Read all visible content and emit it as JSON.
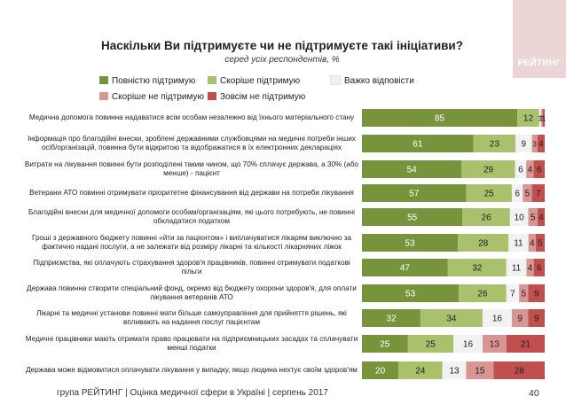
{
  "brand": {
    "logo_text": "РЕЙТИНГ"
  },
  "footer": {
    "text": "група РЕЙТИНГ  |  Оцінка медичної сфери в Україні  |  серпень 2017",
    "page": "40"
  },
  "chart_data": {
    "type": "bar",
    "orientation": "horizontal-stacked-100",
    "title": "Наскільки Ви підтримуєте чи не підтримуєте такі ініціативи?",
    "subtitle": "серед усіх респондентів, %",
    "series": [
      {
        "name": "Повністю підтримую",
        "color": "#77933c",
        "text_color": "#ffffff",
        "values": [
          85,
          61,
          54,
          57,
          55,
          53,
          47,
          53,
          32,
          25,
          20
        ]
      },
      {
        "name": "Скоріше підтримую",
        "color": "#a9c16d",
        "text_color": "#222222",
        "values": [
          12,
          23,
          29,
          25,
          26,
          28,
          32,
          26,
          34,
          25,
          24
        ]
      },
      {
        "name": "Важко відповісти",
        "color": "#f2f2f2",
        "text_color": "#222222",
        "values": [
          1,
          9,
          6,
          6,
          10,
          11,
          11,
          7,
          16,
          16,
          13
        ]
      },
      {
        "name": "Скоріше не підтримую",
        "color": "#d99594",
        "text_color": "#222222",
        "values": [
          1,
          3,
          4,
          5,
          5,
          4,
          4,
          5,
          9,
          13,
          15
        ]
      },
      {
        "name": "Зовсім не підтримую",
        "color": "#c0504d",
        "text_color": "#222222",
        "values": [
          1,
          4,
          6,
          7,
          4,
          5,
          6,
          9,
          9,
          21,
          28
        ]
      }
    ],
    "categories": [
      "Медична допомога повинна надаватися всім особам незалежно від їхнього матеріального стану",
      "Інформація про благодійні внески, зроблені державними службовцями на медичні потреби інших осіб/організацій, повинна бути відкритою та відображатися в їх електронних деклараціях",
      "Витрати на лікування повинні бути розподілені таким чином, що 70% сплачує держава, а 30% (або менше) - пацієнт",
      "Ветерани АТО повинні отримувати пріоритетне фінансування від держави на потреби лікування",
      "Благодійні внески для медичної допомоги особам/організаціям, які цього потребують, не повинні обкладатися податком",
      "Гроші з державного бюджету повинні «йти за пацієнтом» і виплачуватися лікарям виключно за фактично надані послуги, а не залежати від розміру лікарні та кількості лікарняних ліжок",
      "Підприємства, які оплачують страхування здоров'я працівників, повинні отримувати податкові пільги",
      "Держава повинна створити спеціальний фонд, окремо від бюджету охорони здоров'я, для оплати лікування ветеранів АТО",
      "Лікарні та медичні установи повинні мати більше самоуправління для прийняття рішень, які впливають на надання послуг пацієнтам",
      "Медичні працівники мають отримати право працювати на підприємницьких засадах та сплачувати менші податки",
      "Держава може відмовитися оплачувати лікування у випадку, якщо людина нехтує своїм здоров'ям"
    ],
    "xlim": [
      0,
      100
    ]
  }
}
